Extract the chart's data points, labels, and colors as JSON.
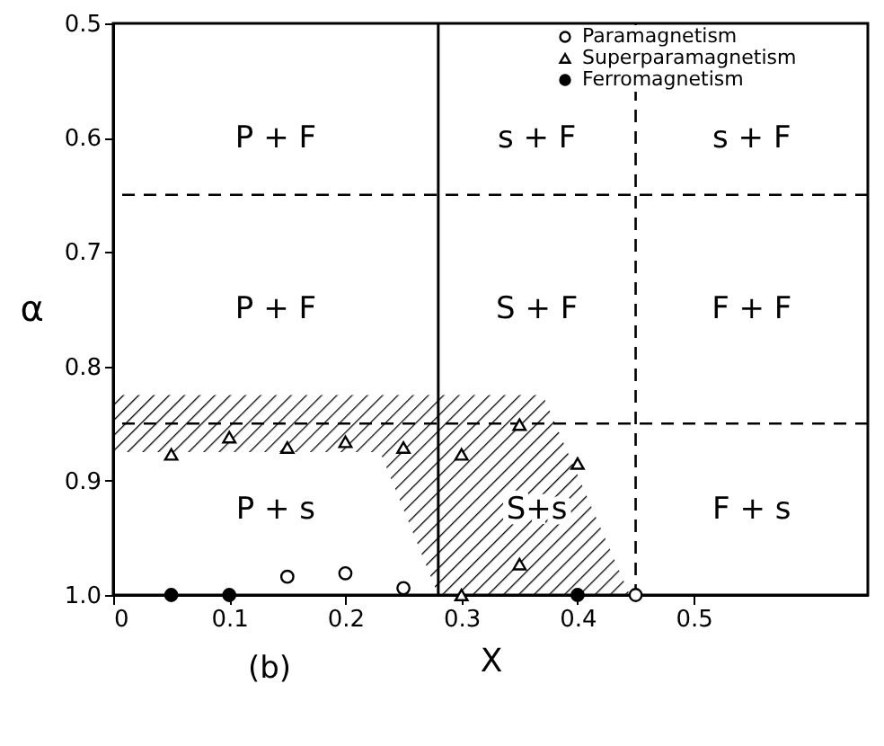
{
  "chart_data": {
    "type": "scatter",
    "xlabel": "X",
    "ylabel": "α",
    "xlim": [
      0,
      0.65
    ],
    "ylim": [
      1.0,
      0.5
    ],
    "xticks": [
      0,
      0.1,
      0.2,
      0.3,
      0.4,
      0.5
    ],
    "yticks": [
      0.5,
      0.6,
      0.7,
      0.8,
      0.9,
      {
        "value": 1.0,
        "label": "1.0"
      }
    ],
    "grid": false,
    "legend": "top right",
    "series": [
      {
        "type": "area",
        "color": "#000000",
        "x": [
          0,
          0.37,
          0.445,
          0.28,
          0.23,
          0
        ],
        "values": [
          0.825,
          0.825,
          1.0,
          1.0,
          0.875,
          0.875
        ]
      },
      {
        "name": "Paramagnetism",
        "marker": "circle",
        "color": "#ffffff",
        "x": [
          0.15,
          0.2,
          0.25,
          0.45
        ],
        "values": [
          0.984,
          0.981,
          0.994,
          1.0
        ]
      },
      {
        "name": "Superparamagnetism",
        "marker": "triangle",
        "color": "#ffffff",
        "x": [
          0.05,
          0.1,
          0.15,
          0.2,
          0.25,
          0.3,
          0.35,
          0.4,
          0.35,
          0.3
        ],
        "values": [
          0.877,
          0.862,
          0.871,
          0.866,
          0.871,
          0.877,
          0.851,
          0.885,
          0.973,
          1.0
        ]
      },
      {
        "name": "Ferromagnetism",
        "marker": "circle",
        "color": "#000000",
        "x": [
          0.05,
          0.1,
          0.4
        ],
        "values": [
          1.0,
          1.0,
          1.0
        ]
      }
    ],
    "ref_lines": [
      {
        "axis": "x",
        "value": 0.28,
        "line_style": "solid"
      },
      {
        "axis": "x",
        "value": 0.45,
        "line_style": "dashed"
      },
      {
        "axis": "y",
        "value": 0.65,
        "line_style": "dashed"
      },
      {
        "axis": "y",
        "value": 0.85,
        "line_style": "dashed"
      }
    ],
    "annotations": [
      "P + F",
      "s + F",
      "s + F",
      "P + F",
      "S + F",
      "F + F",
      "P + s",
      "S+s",
      "F + s",
      "(b)"
    ]
  }
}
